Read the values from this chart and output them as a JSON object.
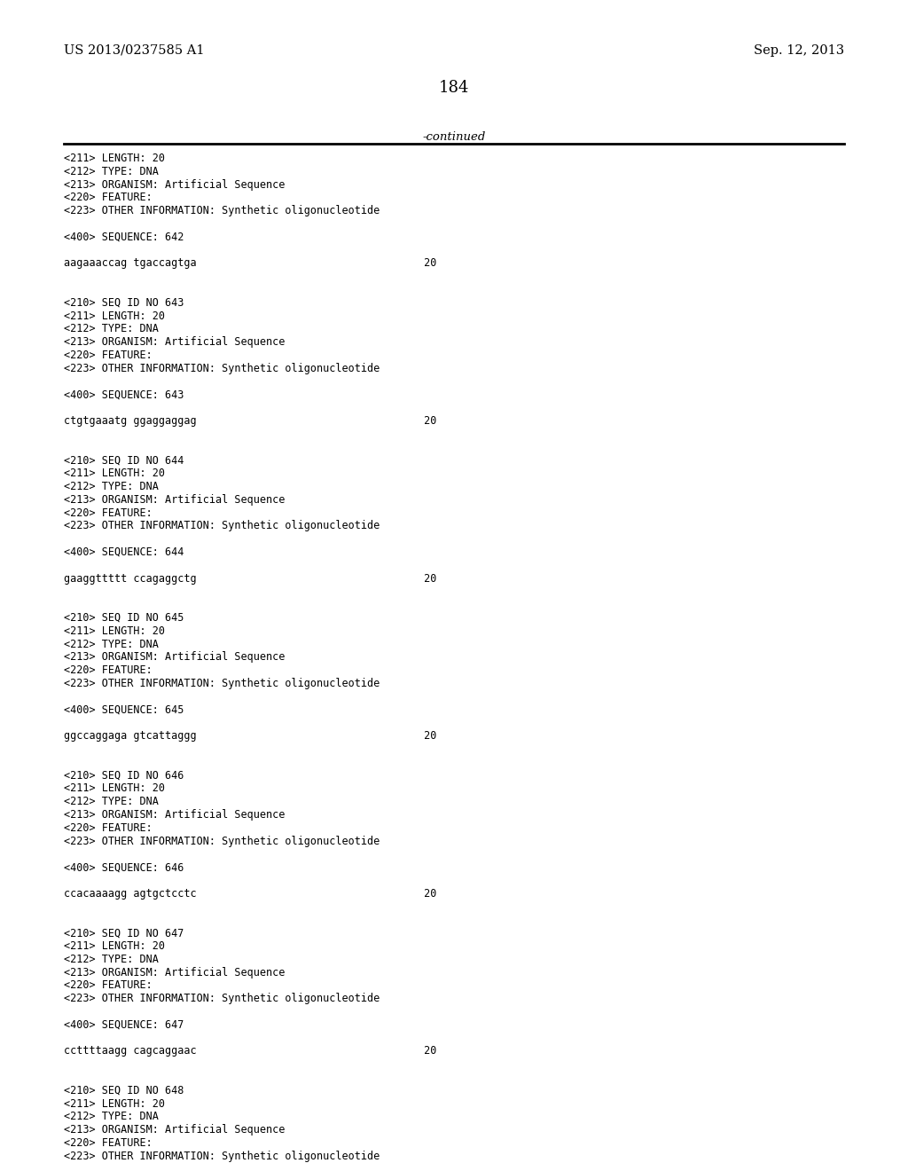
{
  "left_header": "US 2013/0237585 A1",
  "right_header": "Sep. 12, 2013",
  "page_number": "184",
  "continued_label": "-continued",
  "background_color": "#ffffff",
  "text_color": "#000000",
  "content_lines": [
    "<211> LENGTH: 20",
    "<212> TYPE: DNA",
    "<213> ORGANISM: Artificial Sequence",
    "<220> FEATURE:",
    "<223> OTHER INFORMATION: Synthetic oligonucleotide",
    "",
    "<400> SEQUENCE: 642",
    "",
    "aagaaaccag tgaccagtga                                    20",
    "",
    "",
    "<210> SEQ ID NO 643",
    "<211> LENGTH: 20",
    "<212> TYPE: DNA",
    "<213> ORGANISM: Artificial Sequence",
    "<220> FEATURE:",
    "<223> OTHER INFORMATION: Synthetic oligonucleotide",
    "",
    "<400> SEQUENCE: 643",
    "",
    "ctgtgaaatg ggaggaggag                                    20",
    "",
    "",
    "<210> SEQ ID NO 644",
    "<211> LENGTH: 20",
    "<212> TYPE: DNA",
    "<213> ORGANISM: Artificial Sequence",
    "<220> FEATURE:",
    "<223> OTHER INFORMATION: Synthetic oligonucleotide",
    "",
    "<400> SEQUENCE: 644",
    "",
    "gaaggttttt ccagaggctg                                    20",
    "",
    "",
    "<210> SEQ ID NO 645",
    "<211> LENGTH: 20",
    "<212> TYPE: DNA",
    "<213> ORGANISM: Artificial Sequence",
    "<220> FEATURE:",
    "<223> OTHER INFORMATION: Synthetic oligonucleotide",
    "",
    "<400> SEQUENCE: 645",
    "",
    "ggccaggaga gtcattaggg                                    20",
    "",
    "",
    "<210> SEQ ID NO 646",
    "<211> LENGTH: 20",
    "<212> TYPE: DNA",
    "<213> ORGANISM: Artificial Sequence",
    "<220> FEATURE:",
    "<223> OTHER INFORMATION: Synthetic oligonucleotide",
    "",
    "<400> SEQUENCE: 646",
    "",
    "ccacaaaagg agtgctcctc                                    20",
    "",
    "",
    "<210> SEQ ID NO 647",
    "<211> LENGTH: 20",
    "<212> TYPE: DNA",
    "<213> ORGANISM: Artificial Sequence",
    "<220> FEATURE:",
    "<223> OTHER INFORMATION: Synthetic oligonucleotide",
    "",
    "<400> SEQUENCE: 647",
    "",
    "ccttttaagg cagcaggaac                                    20",
    "",
    "",
    "<210> SEQ ID NO 648",
    "<211> LENGTH: 20",
    "<212> TYPE: DNA",
    "<213> ORGANISM: Artificial Sequence",
    "<220> FEATURE:",
    "<223> OTHER INFORMATION: Synthetic oligonucleotide"
  ]
}
